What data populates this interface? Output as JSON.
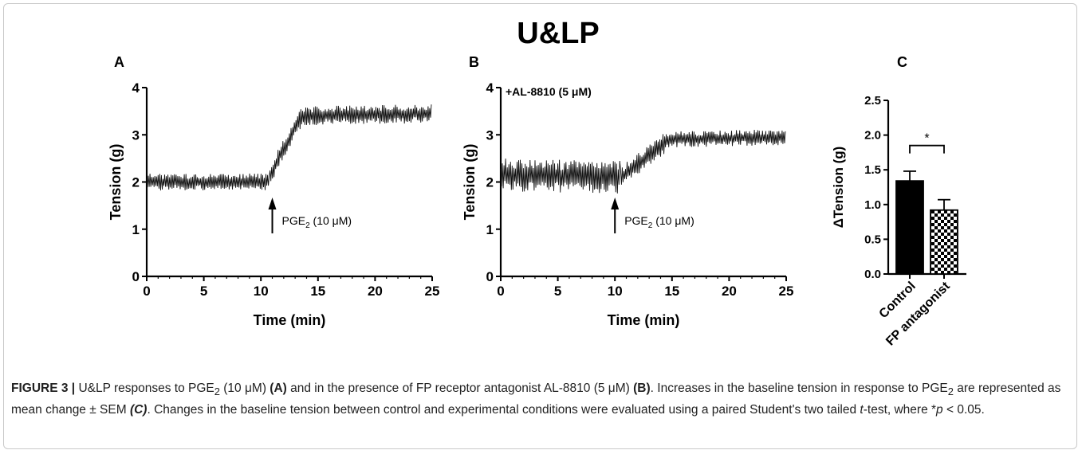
{
  "figure": {
    "main_title": "U&LP",
    "caption": {
      "label": "FIGURE 3 |",
      "seg1": "U&LP responses to PGE",
      "sub1": "2",
      "seg2": "(10 μM)",
      "ref_a": "(A)",
      "seg3": "and in the presence of FP receptor antagonist AL-8810 (5 μM)",
      "ref_b": "(B)",
      "seg4": ". Increases in the baseline tension in response to PGE",
      "sub2": "2",
      "seg5": "are represented as mean change ± SEM",
      "ref_c": "(C)",
      "seg6": ". Changes in the baseline tension between control and experimental conditions were evaluated using a paired Student's two tailed",
      "t": "t",
      "seg7": "-test, where *",
      "p": "p",
      "seg8": "< 0.05."
    }
  },
  "chart_data": [
    {
      "panel": "A",
      "type": "line",
      "xlabel": "Time (min)",
      "ylabel": "Tension (g)",
      "xlim": [
        0,
        25
      ],
      "ylim": [
        0,
        4
      ],
      "xticks": [
        0,
        5,
        10,
        15,
        20,
        25
      ],
      "yticks": [
        0,
        1,
        2,
        3,
        4
      ],
      "inset_label": "",
      "annotation": {
        "text": "PGE",
        "sub": "2",
        "rest": " (10 μM)",
        "x": 11
      },
      "series": [
        {
          "segments": [
            {
              "x": [
                0,
                10.8
              ],
              "y": [
                2.0,
                2.0
              ],
              "noise": 0.18
            },
            {
              "x": [
                10.8,
                11.5
              ],
              "y": [
                2.05,
                2.5
              ],
              "noise": 0.2
            },
            {
              "x": [
                11.5,
                13.5
              ],
              "y": [
                2.5,
                3.35
              ],
              "noise": 0.2
            },
            {
              "x": [
                13.5,
                25
              ],
              "y": [
                3.4,
                3.45
              ],
              "noise": 0.2
            }
          ]
        }
      ]
    },
    {
      "panel": "B",
      "type": "line",
      "xlabel": "Time (min)",
      "ylabel": "Tension (g)",
      "xlim": [
        0,
        25
      ],
      "ylim": [
        0,
        4
      ],
      "xticks": [
        0,
        5,
        10,
        15,
        20,
        25
      ],
      "yticks": [
        0,
        1,
        2,
        3,
        4
      ],
      "inset_label": "+AL-8810 (5 μM)",
      "annotation": {
        "text": "PGE",
        "sub": "2",
        "rest": " (10 μM)",
        "x": 10
      },
      "series": [
        {
          "segments": [
            {
              "x": [
                0,
                10.5
              ],
              "y": [
                2.15,
                2.1
              ],
              "noise": 0.35
            },
            {
              "x": [
                10.5,
                14.5
              ],
              "y": [
                2.1,
                2.85
              ],
              "noise": 0.22
            },
            {
              "x": [
                14.5,
                25
              ],
              "y": [
                2.9,
                2.95
              ],
              "noise": 0.17
            }
          ]
        }
      ]
    },
    {
      "panel": "C",
      "type": "bar",
      "ylabel": "ΔTension (g)",
      "categories": [
        "Control",
        "FP antagonist"
      ],
      "values": [
        1.34,
        0.92
      ],
      "errors": [
        0.14,
        0.15
      ],
      "ylim": [
        0,
        2.5
      ],
      "yticks": [
        0.0,
        0.5,
        1.0,
        1.5,
        2.0,
        2.5
      ],
      "significance": "*",
      "colors": [
        "#000000",
        "checker"
      ]
    }
  ]
}
